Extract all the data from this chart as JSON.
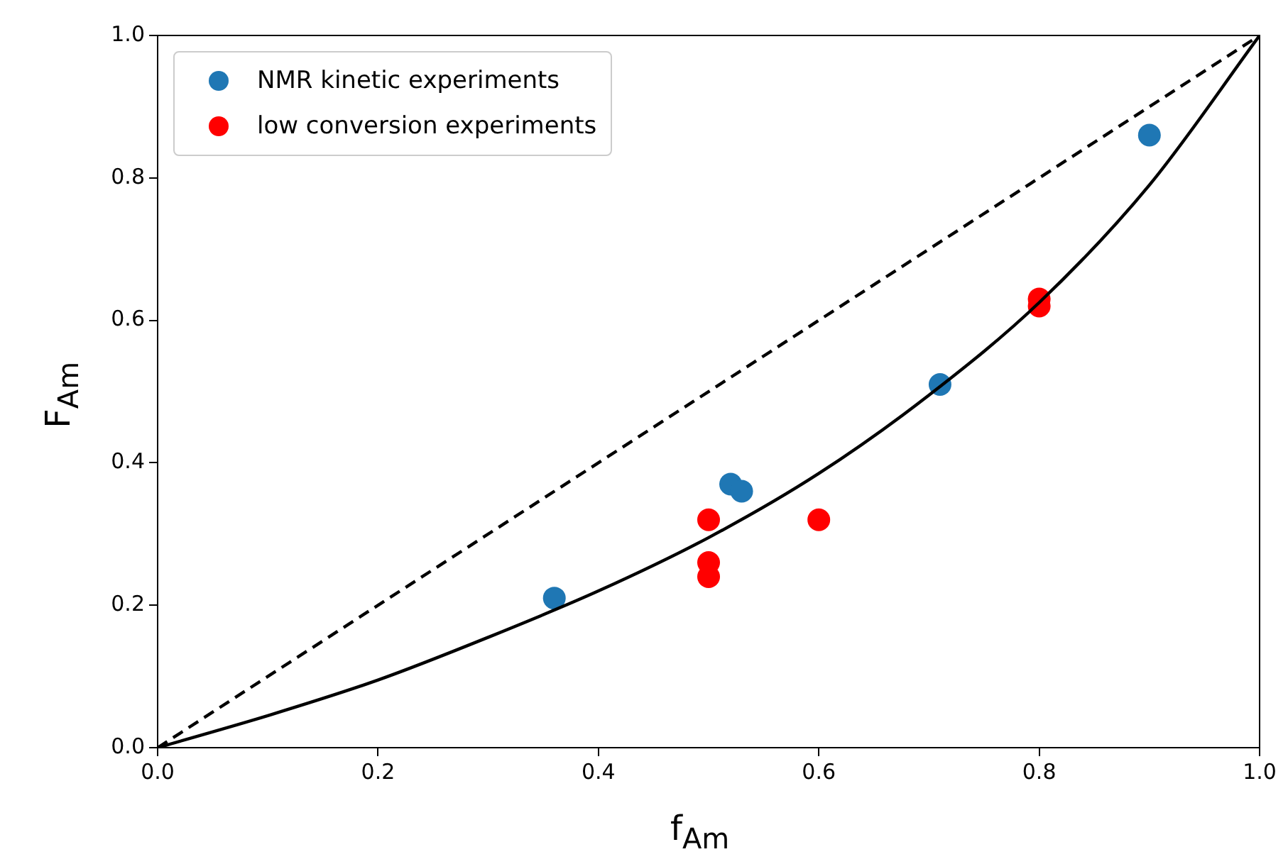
{
  "chart_data": {
    "type": "scatter",
    "xlabel": "f$_{Am}$",
    "ylabel": "F$_{Am}$",
    "xlim": [
      0,
      1
    ],
    "ylim": [
      0,
      1
    ],
    "xticks": [
      {
        "value": 0,
        "label": "0.0"
      },
      0.2,
      0.4,
      0.6,
      0.8,
      {
        "value": 1,
        "label": "1.0"
      }
    ],
    "yticks": [
      {
        "value": 0,
        "label": "0.0"
      },
      0.2,
      0.4,
      0.6,
      0.8,
      {
        "value": 1,
        "label": "1.0"
      }
    ],
    "grid": false,
    "legend": "top left",
    "marker": "circle",
    "series": [
      {
        "type": "line",
        "color": "#000000",
        "line_style": "dashed",
        "marker": "none",
        "x": [
          0,
          1
        ],
        "values": [
          0,
          1
        ]
      },
      {
        "type": "line",
        "color": "#000000",
        "line_style": "solid",
        "marker": "none",
        "x": [
          0,
          0.1,
          0.2,
          0.3,
          0.4,
          0.5,
          0.6,
          0.7,
          0.8,
          0.9,
          1
        ],
        "values": [
          0,
          0.045,
          0.095,
          0.155,
          0.22,
          0.295,
          0.385,
          0.495,
          0.625,
          0.79,
          1
        ]
      },
      {
        "type": "scatter",
        "name": "NMR kinetic experiments",
        "color": "#1f77b4",
        "x": [
          0.36,
          0.52,
          0.53,
          0.71,
          0.9
        ],
        "values": [
          0.21,
          0.37,
          0.36,
          0.51,
          0.86
        ]
      },
      {
        "type": "scatter",
        "name": "low conversion experiments",
        "color": "#ff0000",
        "x": [
          0.5,
          0.5,
          0.5,
          0.6,
          0.8,
          0.8
        ],
        "values": [
          0.32,
          0.26,
          0.24,
          0.32,
          0.63,
          0.62
        ]
      }
    ]
  }
}
